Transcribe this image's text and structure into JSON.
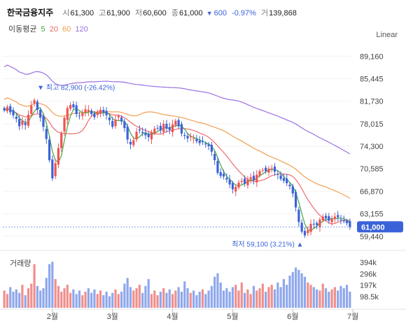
{
  "header": {
    "name": "한국금융지주",
    "open_label": "시",
    "open": "61,300",
    "high_label": "고",
    "high": "61,900",
    "low_label": "저",
    "low": "60,600",
    "close_label": "종",
    "close": "61,000",
    "change": "600",
    "change_pct": "-0.97%",
    "volume_label": "거",
    "volume": "139,868"
  },
  "ma_legend": {
    "title": "이동평균",
    "items": [
      {
        "label": "5",
        "color": "#45a545"
      },
      {
        "label": "20",
        "color": "#ef6b6b"
      },
      {
        "label": "60",
        "color": "#f0a050"
      },
      {
        "label": "120",
        "color": "#9b6fe0"
      }
    ]
  },
  "scale_label": "Linear",
  "volume_panel_label": "거래량",
  "colors": {
    "up": "#ef5350",
    "down": "#3b63d9",
    "ma5": "#45a545",
    "ma20": "#ef6b6b",
    "ma60": "#f0a050",
    "ma120": "#9b6fe0",
    "vol_up": "#f08f8d",
    "vol_down": "#8fa8ec"
  },
  "chart_data": {
    "type": "candlestick",
    "price_axis": {
      "ticks": [
        "89,160",
        "85,445",
        "81,730",
        "78,015",
        "74,300",
        "70,585",
        "66,870",
        "63,155",
        "59,440"
      ],
      "ylim": [
        57800,
        91500
      ]
    },
    "current_price_label": "61,000",
    "current_price": 61000,
    "annotations": {
      "high": {
        "text": "최고 82,900 (-26.42%)",
        "value": 82900
      },
      "low": {
        "text": "최저 59,100 (3.21%)",
        "value": 59100
      }
    },
    "x_axis": {
      "ticks": [
        "2월",
        "3월",
        "4월",
        "5월",
        "6월",
        "7월"
      ],
      "tick_index": [
        16,
        36,
        56,
        76,
        96,
        116
      ]
    },
    "volume_axis": {
      "ticks": [
        "394k",
        "296k",
        "197k",
        "98.5k"
      ],
      "values": [
        394000,
        296000,
        197000,
        98500
      ],
      "ymax": 450000
    },
    "closes": [
      80200,
      80800,
      79900,
      79400,
      78800,
      77600,
      78500,
      77800,
      79500,
      81000,
      81900,
      80300,
      79000,
      77500,
      75500,
      72000,
      69000,
      71500,
      74000,
      76500,
      79000,
      80600,
      81100,
      80700,
      79600,
      79300,
      79700,
      80400,
      80300,
      79600,
      79100,
      79900,
      80300,
      79900,
      79400,
      78600,
      77500,
      78700,
      79300,
      78400,
      77300,
      75400,
      74600,
      75300,
      76700,
      76900,
      76500,
      76100,
      75800,
      76600,
      77200,
      77300,
      76900,
      78000,
      77200,
      77000,
      77900,
      78500,
      77600,
      76400,
      76000,
      75600,
      75900,
      75600,
      75100,
      74800,
      75000,
      74600,
      74300,
      73400,
      72000,
      69900,
      69400,
      69300,
      68800,
      68000,
      67200,
      67600,
      68300,
      68600,
      68100,
      68800,
      69200,
      68700,
      69600,
      70200,
      70400,
      70200,
      70600,
      70700,
      70100,
      69600,
      68900,
      68600,
      68200,
      67700,
      66500,
      64200,
      61800,
      60200,
      59600,
      60400,
      61500,
      61400,
      61300,
      62200,
      62700,
      62400,
      62000,
      62300,
      62700,
      62600,
      62200,
      61900,
      61600,
      61000
    ],
    "volumes": [
      150000,
      120000,
      180000,
      140000,
      160000,
      130000,
      200000,
      110000,
      170000,
      210000,
      380000,
      190000,
      150000,
      170000,
      260000,
      380000,
      400000,
      250000,
      190000,
      140000,
      170000,
      200000,
      130000,
      160000,
      120000,
      150000,
      110000,
      140000,
      170000,
      130000,
      160000,
      120000,
      150000,
      110000,
      140000,
      100000,
      130000,
      160000,
      120000,
      140000,
      210000,
      260000,
      180000,
      150000,
      170000,
      200000,
      130000,
      190000,
      250000,
      120000,
      150000,
      110000,
      140000,
      170000,
      130000,
      160000,
      120000,
      150000,
      180000,
      140000,
      230000,
      170000,
      130000,
      150000,
      110000,
      140000,
      160000,
      120000,
      150000,
      190000,
      270000,
      300000,
      220000,
      150000,
      170000,
      140000,
      180000,
      200000,
      150000,
      220000,
      130000,
      160000,
      120000,
      190000,
      150000,
      170000,
      210000,
      140000,
      180000,
      200000,
      160000,
      220000,
      180000,
      250000,
      200000,
      280000,
      310000,
      350000,
      330000,
      300000,
      270000,
      220000,
      200000,
      180000,
      160000,
      150000,
      210000,
      170000,
      140000,
      160000,
      180000,
      150000,
      190000,
      170000,
      200000,
      139868
    ]
  }
}
